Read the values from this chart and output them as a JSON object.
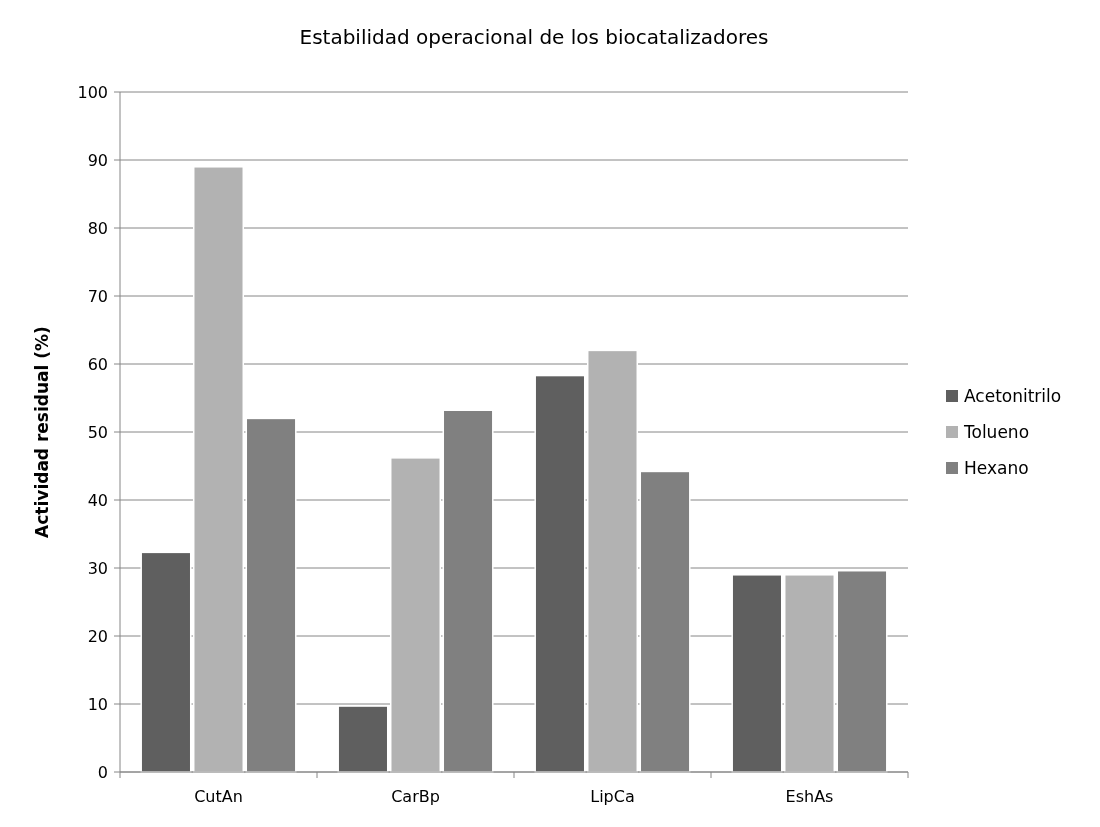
{
  "chart_data": {
    "type": "bar",
    "title": "Estabilidad operacional de los biocatalizadores",
    "ylabel": "Actividad residual (%)",
    "categories": [
      "CutAn",
      "CarBp",
      "LipCa",
      "EshAs"
    ],
    "series": [
      {
        "name": "Acetonitrilo",
        "color": "#5f5f5f",
        "values": [
          32.3,
          9.7,
          58.3,
          29
        ]
      },
      {
        "name": "Tolueno",
        "color": "#b2b2b2",
        "values": [
          89,
          46.2,
          62,
          29
        ]
      },
      {
        "name": "Hexano",
        "color": "#808080",
        "values": [
          52,
          53.2,
          44.2,
          29.6
        ]
      }
    ],
    "ylim": [
      0,
      100
    ],
    "yticks": [
      0,
      10,
      20,
      30,
      40,
      50,
      60,
      70,
      80,
      90,
      100
    ],
    "grid": "y",
    "legend": "right"
  }
}
